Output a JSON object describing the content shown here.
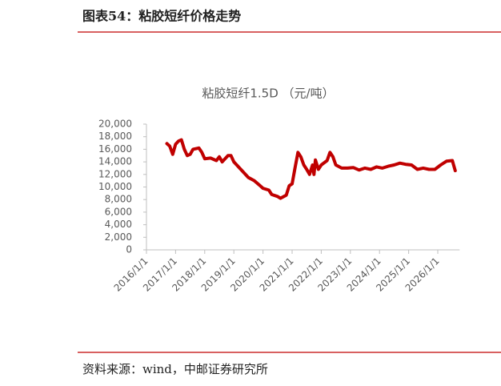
{
  "header": {
    "title": "图表54：粘胶短纤价格走势"
  },
  "source": "资料来源：wind，中邮证券研究所",
  "chart_data": {
    "type": "line",
    "title": "粘胶短纤1.5D （元/吨）",
    "x": [
      2016.7,
      2016.8,
      2016.9,
      2017.0,
      2017.1,
      2017.2,
      2017.3,
      2017.4,
      2017.5,
      2017.6,
      2017.8,
      2017.9,
      2018.0,
      2018.2,
      2018.4,
      2018.5,
      2018.6,
      2018.8,
      2018.9,
      2019.0,
      2019.1,
      2019.3,
      2019.5,
      2019.7,
      2019.9,
      2020.0,
      2020.2,
      2020.3,
      2020.5,
      2020.6,
      2020.8,
      2020.9,
      2021.0,
      2021.1,
      2021.2,
      2021.3,
      2021.4,
      2021.5,
      2021.6,
      2021.7,
      2021.75,
      2021.8,
      2021.9,
      2022.0,
      2022.2,
      2022.3,
      2022.4,
      2022.5,
      2022.7,
      2022.9,
      2023.1,
      2023.3,
      2023.5,
      2023.7,
      2023.9,
      2024.1,
      2024.3,
      2024.5,
      2024.7,
      2024.9,
      2025.1,
      2025.3,
      2025.5,
      2025.7,
      2025.9,
      2026.1,
      2026.3,
      2026.5,
      2026.6
    ],
    "series": [
      {
        "name": "粘胶短纤1.5D",
        "color": "#c00000",
        "values": [
          16900,
          16500,
          15200,
          16800,
          17300,
          17500,
          16000,
          15000,
          15200,
          16000,
          16200,
          15500,
          14500,
          14600,
          14200,
          14800,
          14000,
          15000,
          15000,
          14000,
          13500,
          12500,
          11500,
          11000,
          10200,
          9800,
          9500,
          8800,
          8500,
          8200,
          8700,
          10200,
          10500,
          13000,
          15500,
          14800,
          13500,
          12800,
          12000,
          13500,
          12000,
          14300,
          12800,
          13500,
          14200,
          15500,
          14800,
          13500,
          13000,
          13000,
          13100,
          12700,
          13000,
          12800,
          13200,
          13000,
          13300,
          13500,
          13800,
          13600,
          13500,
          12800,
          13000,
          12800,
          12800,
          13500,
          14100,
          14200,
          12600
        ]
      }
    ],
    "ylim": [
      0,
      20000
    ],
    "yticks": [
      0,
      {
        "value": 2000,
        "label": "2,000"
      },
      {
        "value": 4000,
        "label": "4,000"
      },
      {
        "value": 6000,
        "label": "6,000"
      },
      {
        "value": 8000,
        "label": "8,000"
      },
      {
        "value": 10000,
        "label": "10,000"
      },
      {
        "value": 12000,
        "label": "12,000"
      },
      {
        "value": 14000,
        "label": "14,000"
      },
      {
        "value": 16000,
        "label": "16,000"
      },
      {
        "value": 18000,
        "label": "18,000"
      },
      {
        "value": 20000,
        "label": "20,000"
      }
    ],
    "xlim": [
      2016,
      2026.75
    ],
    "xticks": [
      {
        "value": 2016,
        "label": "2016/1/1"
      },
      {
        "value": 2017,
        "label": "2017/1/1"
      },
      {
        "value": 2018,
        "label": "2018/1/1"
      },
      {
        "value": 2019,
        "label": "2019/1/1"
      },
      {
        "value": 2020,
        "label": "2020/1/1"
      },
      {
        "value": 2021,
        "label": "2021/1/1"
      },
      {
        "value": 2022,
        "label": "2022/1/1"
      },
      {
        "value": 2023,
        "label": "2023/1/1"
      },
      {
        "value": 2024,
        "label": "2024/1/1"
      },
      {
        "value": 2025,
        "label": "2025/1/1"
      },
      {
        "value": 2026,
        "label": "2026/1/1"
      }
    ],
    "grid": false
  }
}
